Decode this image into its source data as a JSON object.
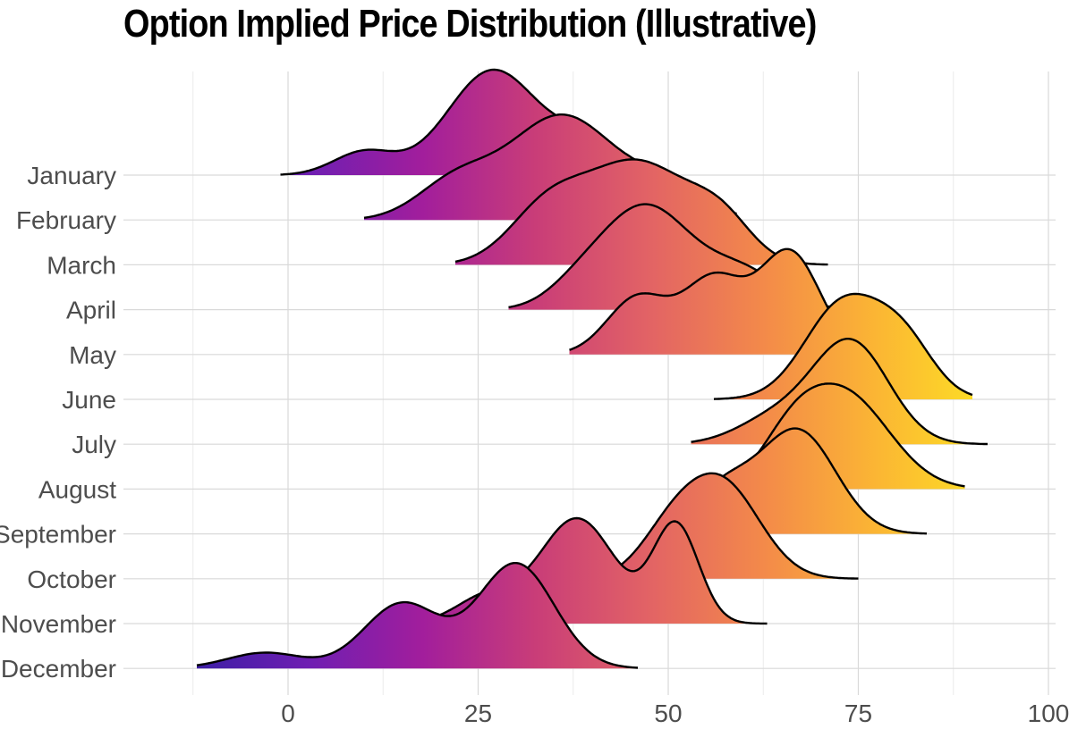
{
  "chart_data": {
    "type": "ridgeline",
    "title": "Option Implied Price Distribution (Illustrative)",
    "xlabel": "",
    "ylabel": "",
    "xlim": [
      -15,
      100
    ],
    "x_ticks": [
      0,
      25,
      50,
      75,
      100
    ],
    "x_tick_labels": [
      "0",
      "25",
      "50",
      "75",
      "100"
    ],
    "grid": true,
    "fill_gradient": [
      "#3d1fa5",
      "#6f1fb2",
      "#a21e9c",
      "#c93d78",
      "#e26365",
      "#f3894a",
      "#fbb534",
      "#fde024"
    ],
    "series": [
      {
        "name": "January",
        "range": [
          -1,
          49
        ],
        "peaks": [
          [
            10,
            4,
            0.22
          ],
          [
            27,
            6,
            1.0
          ],
          [
            39,
            4,
            0.28
          ]
        ]
      },
      {
        "name": "February",
        "range": [
          10,
          59
        ],
        "peaks": [
          [
            22,
            5,
            0.35
          ],
          [
            36,
            7,
            1.0
          ],
          [
            50,
            5,
            0.28
          ]
        ]
      },
      {
        "name": "March",
        "range": [
          22,
          71
        ],
        "peaks": [
          [
            34,
            5,
            0.5
          ],
          [
            46,
            7,
            1.0
          ],
          [
            57,
            4,
            0.35
          ]
        ]
      },
      {
        "name": "April",
        "range": [
          29,
          75
        ],
        "peaks": [
          [
            38,
            4,
            0.15
          ],
          [
            47,
            6,
            1.0
          ],
          [
            60,
            5,
            0.35
          ]
        ]
      },
      {
        "name": "May",
        "range": [
          37,
          71
        ],
        "peaks": [
          [
            46,
            4,
            0.42
          ],
          [
            56,
            4,
            0.55
          ],
          [
            66,
            4,
            0.75
          ]
        ]
      },
      {
        "name": "June",
        "range": [
          56,
          90
        ],
        "peaks": [
          [
            73,
            5,
            1.0
          ],
          [
            81,
            4,
            0.55
          ]
        ]
      },
      {
        "name": "July",
        "range": [
          53,
          92
        ],
        "peaks": [
          [
            64,
            5,
            0.25
          ],
          [
            74,
            5,
            1.0
          ]
        ]
      },
      {
        "name": "August",
        "range": [
          59,
          89
        ],
        "peaks": [
          [
            66,
            4,
            0.35
          ],
          [
            73,
            6,
            1.0
          ]
        ]
      },
      {
        "name": "September",
        "range": [
          53,
          84
        ],
        "peaks": [
          [
            57,
            4,
            0.35
          ],
          [
            67,
            5,
            0.85
          ]
        ]
      },
      {
        "name": "October",
        "range": [
          40,
          75
        ],
        "peaks": [
          [
            50,
            4,
            0.35
          ],
          [
            57,
            5,
            0.9
          ]
        ]
      },
      {
        "name": "November",
        "range": [
          18,
          63
        ],
        "peaks": [
          [
            26,
            4,
            0.2
          ],
          [
            38,
            5,
            0.8
          ],
          [
            51,
            3,
            0.75
          ]
        ]
      },
      {
        "name": "December",
        "range": [
          -12,
          46
        ],
        "peaks": [
          [
            -3,
            5,
            0.15
          ],
          [
            15,
            5,
            0.62
          ],
          [
            30,
            5,
            1.0
          ]
        ]
      }
    ]
  }
}
